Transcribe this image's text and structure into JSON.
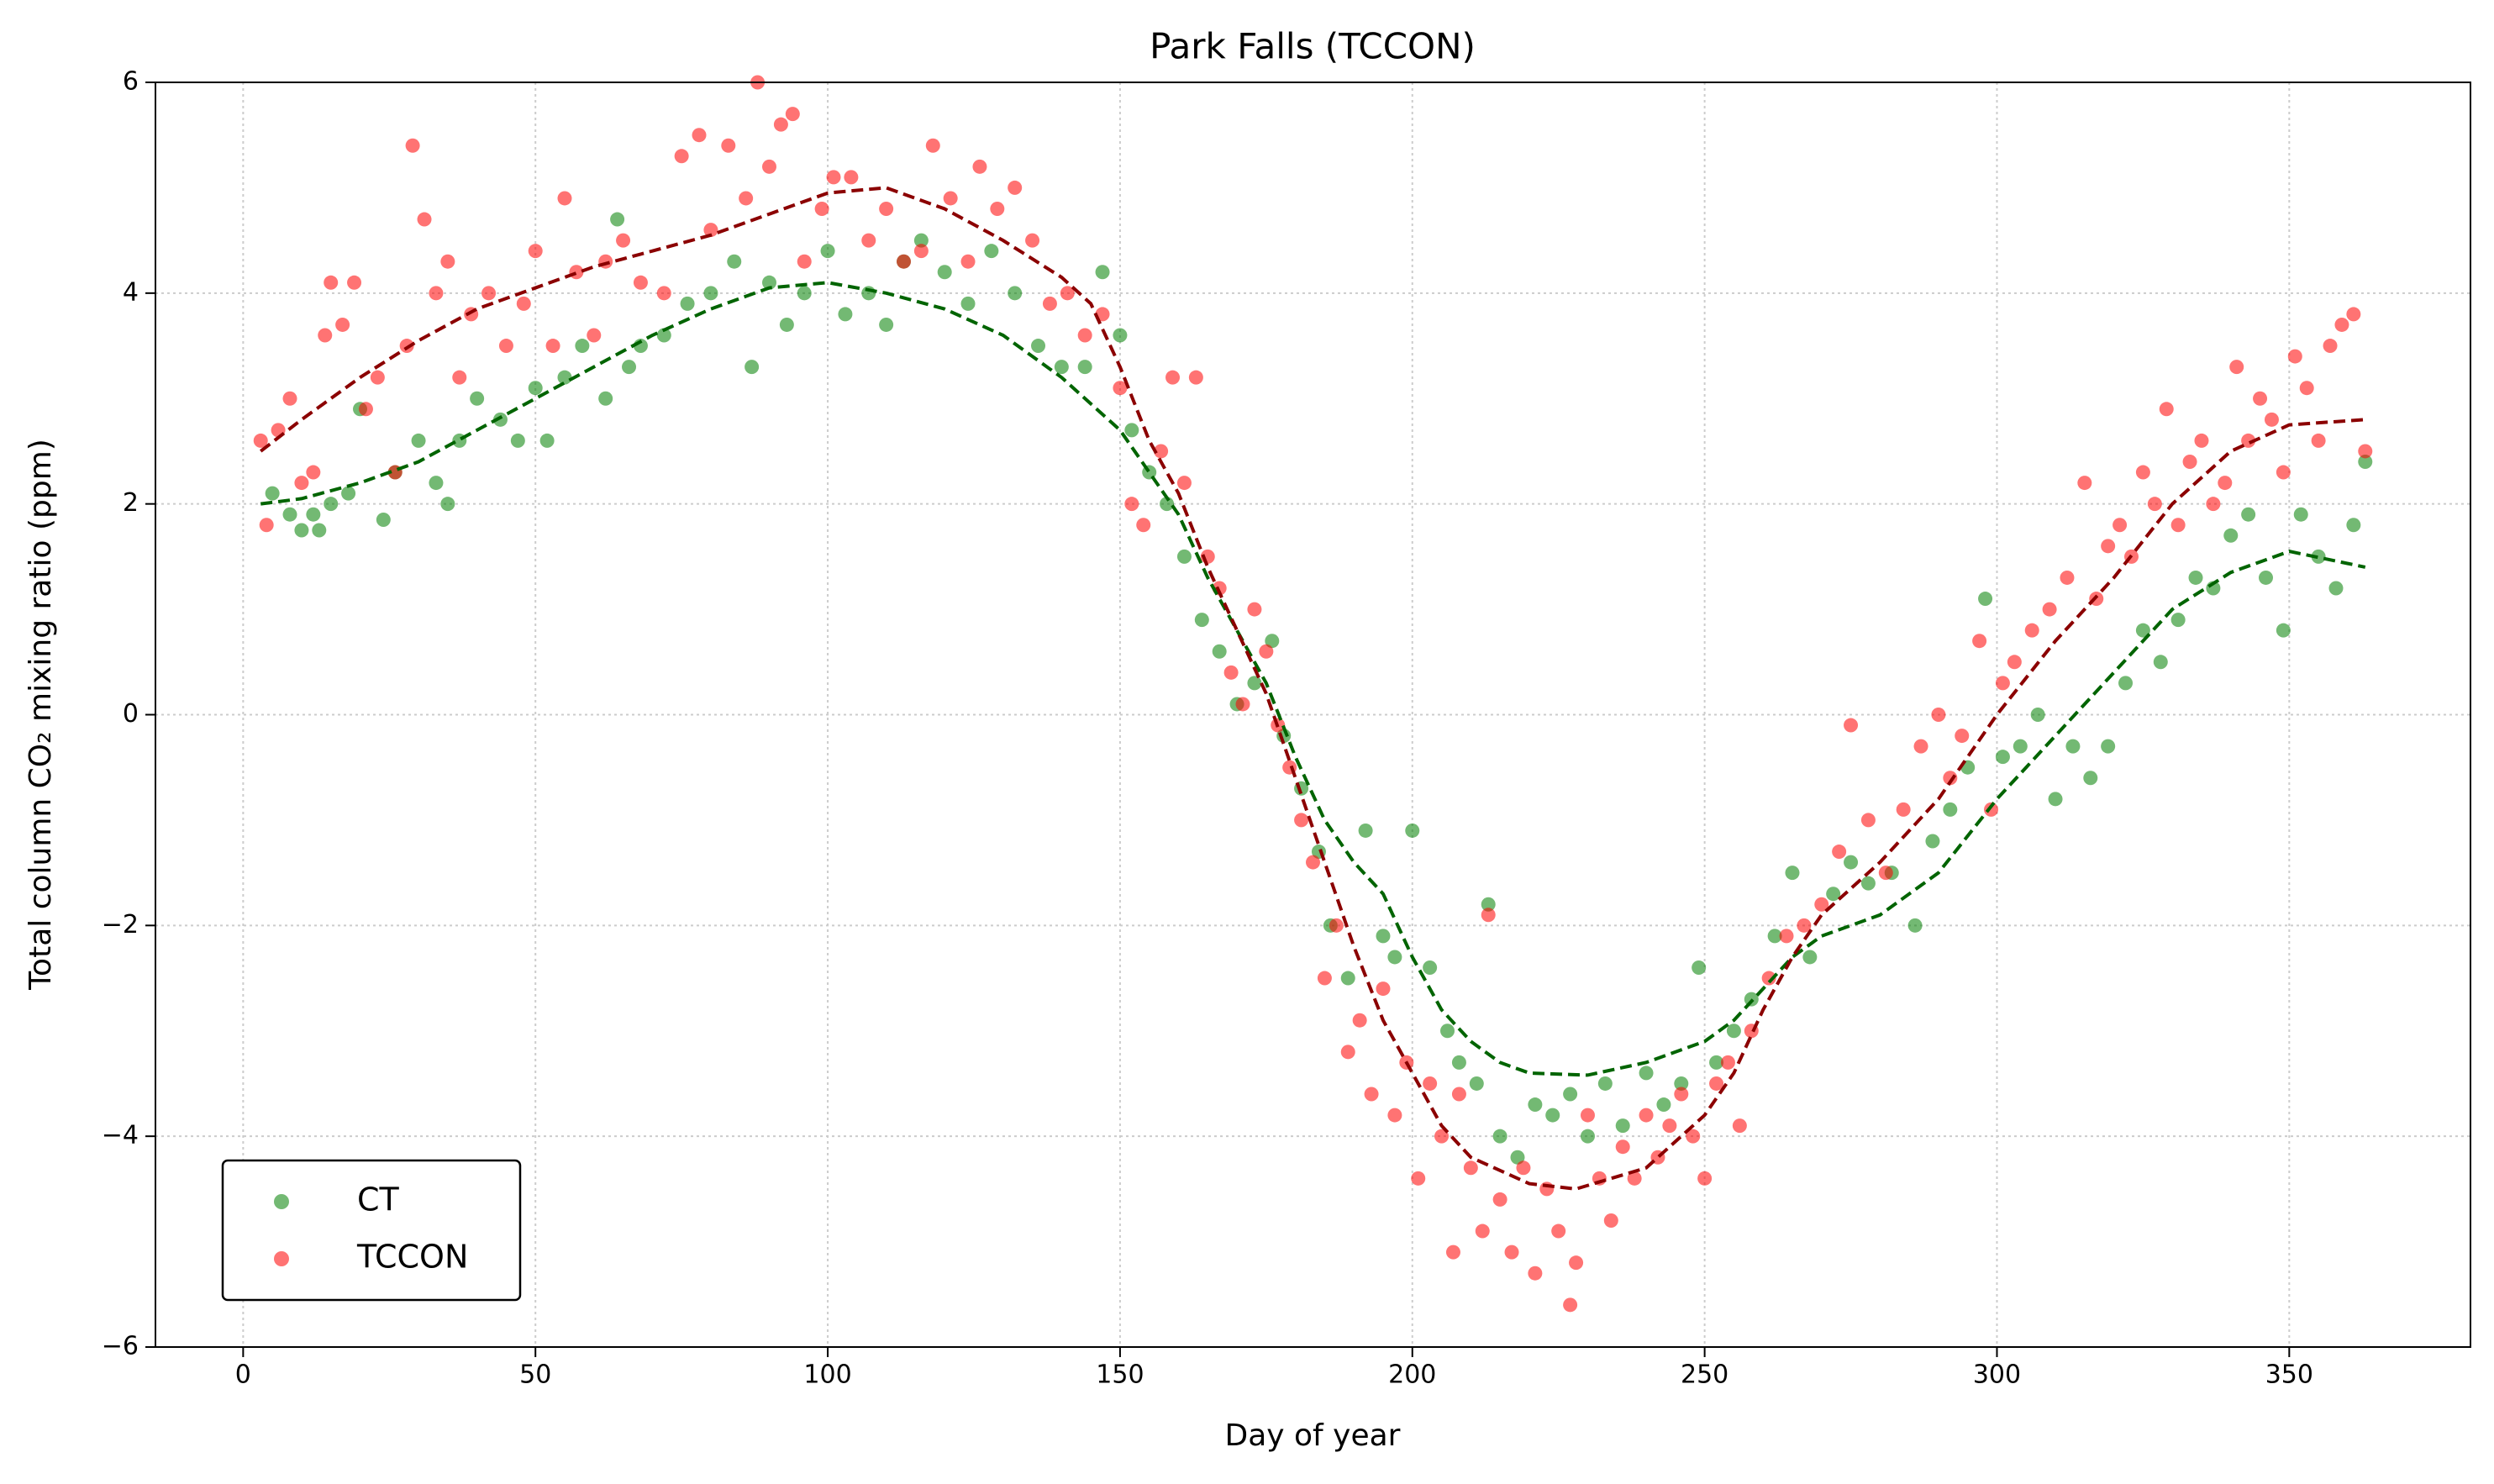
{
  "chart_data": {
    "type": "scatter",
    "title": "Park Falls (TCCON)",
    "x_label": "Day of year",
    "y_label": "Total column CO₂ mixing ratio (ppm)",
    "xlim": [
      -15,
      381
    ],
    "ylim": [
      -6,
      6
    ],
    "xticks": [
      0,
      50,
      100,
      150,
      200,
      250,
      300,
      350
    ],
    "yticks": [
      {
        "value": -6,
        "label": "−6"
      },
      {
        "value": -4,
        "label": "−4"
      },
      {
        "value": -2,
        "label": "−2"
      },
      0,
      2,
      4,
      6
    ],
    "grid": true,
    "legend": "lower left",
    "series": [
      {
        "name": "CT",
        "color": "#008000",
        "x": [
          5,
          8,
          10,
          12,
          13,
          15,
          18,
          20,
          24,
          26,
          30,
          33,
          35,
          37,
          40,
          44,
          47,
          50,
          52,
          55,
          58,
          62,
          64,
          66,
          68,
          72,
          76,
          80,
          84,
          87,
          90,
          93,
          96,
          100,
          103,
          107,
          110,
          113,
          116,
          120,
          124,
          128,
          132,
          136,
          140,
          144,
          147,
          150,
          152,
          155,
          158,
          161,
          164,
          167,
          170,
          173,
          176,
          178,
          181,
          184,
          186,
          189,
          192,
          195,
          197,
          200,
          203,
          206,
          208,
          211,
          213,
          215,
          218,
          221,
          224,
          227,
          230,
          233,
          236,
          240,
          243,
          246,
          249,
          252,
          255,
          258,
          262,
          265,
          268,
          272,
          275,
          278,
          282,
          286,
          289,
          292,
          295,
          298,
          301,
          304,
          307,
          310,
          313,
          316,
          319,
          322,
          325,
          328,
          331,
          334,
          337,
          340,
          343,
          346,
          349,
          352,
          355,
          358,
          361,
          363
        ],
        "values": [
          2.1,
          1.9,
          1.75,
          1.9,
          1.75,
          2.0,
          2.1,
          2.9,
          1.85,
          2.3,
          2.6,
          2.2,
          2.0,
          2.6,
          3.0,
          2.8,
          2.6,
          3.1,
          2.6,
          3.2,
          3.5,
          3.0,
          4.7,
          3.3,
          3.5,
          3.6,
          3.9,
          4.0,
          4.3,
          3.3,
          4.1,
          3.7,
          4.0,
          4.4,
          3.8,
          4.0,
          3.7,
          4.3,
          4.5,
          4.2,
          3.9,
          4.4,
          4.0,
          3.5,
          3.3,
          3.3,
          4.2,
          3.6,
          2.7,
          2.3,
          2.0,
          1.5,
          0.9,
          0.6,
          0.1,
          0.3,
          0.7,
          -0.2,
          -0.7,
          -1.3,
          -2.0,
          -2.5,
          -1.1,
          -2.1,
          -2.3,
          -1.1,
          -2.4,
          -3.0,
          -3.3,
          -3.5,
          -1.8,
          -4.0,
          -4.2,
          -3.7,
          -3.8,
          -3.6,
          -4.0,
          -3.5,
          -3.9,
          -3.4,
          -3.7,
          -3.5,
          -2.4,
          -3.3,
          -3.0,
          -2.7,
          -2.1,
          -1.5,
          -2.3,
          -1.7,
          -1.4,
          -1.6,
          -1.5,
          -2.0,
          -1.2,
          -0.9,
          -0.5,
          1.1,
          -0.4,
          -0.3,
          0.0,
          -0.8,
          -0.3,
          -0.6,
          -0.3,
          0.3,
          0.8,
          0.5,
          0.9,
          1.3,
          1.2,
          1.7,
          1.9,
          1.3,
          0.8,
          1.9,
          1.5,
          1.2,
          1.8,
          2.4
        ]
      },
      {
        "name": "TCCON",
        "color": "#ff0000",
        "x": [
          3,
          4,
          6,
          8,
          10,
          12,
          14,
          15,
          17,
          19,
          21,
          23,
          26,
          28,
          29,
          31,
          33,
          35,
          37,
          39,
          42,
          45,
          48,
          50,
          53,
          55,
          57,
          60,
          62,
          65,
          68,
          72,
          75,
          78,
          80,
          83,
          86,
          88,
          90,
          92,
          94,
          96,
          99,
          101,
          104,
          107,
          110,
          113,
          116,
          118,
          121,
          124,
          126,
          129,
          132,
          135,
          138,
          141,
          144,
          147,
          150,
          152,
          154,
          157,
          159,
          161,
          163,
          165,
          167,
          169,
          171,
          173,
          175,
          177,
          179,
          181,
          183,
          185,
          187,
          189,
          191,
          193,
          195,
          197,
          199,
          201,
          203,
          205,
          207,
          208,
          210,
          212,
          213,
          215,
          217,
          219,
          221,
          223,
          225,
          227,
          228,
          230,
          232,
          234,
          236,
          238,
          240,
          242,
          244,
          246,
          248,
          250,
          252,
          254,
          256,
          258,
          261,
          264,
          267,
          270,
          273,
          275,
          278,
          281,
          284,
          287,
          290,
          292,
          294,
          297,
          299,
          301,
          303,
          306,
          309,
          312,
          315,
          317,
          319,
          321,
          323,
          325,
          327,
          329,
          331,
          333,
          335,
          337,
          339,
          341,
          343,
          345,
          347,
          349,
          351,
          353,
          355,
          357,
          359,
          361,
          363
        ],
        "values": [
          2.6,
          1.8,
          2.7,
          3.0,
          2.2,
          2.3,
          3.6,
          4.1,
          3.7,
          4.1,
          2.9,
          3.2,
          2.3,
          3.5,
          5.4,
          4.7,
          4.0,
          4.3,
          3.2,
          3.8,
          4.0,
          3.5,
          3.9,
          4.4,
          3.5,
          4.9,
          4.2,
          3.6,
          4.3,
          4.5,
          4.1,
          4.0,
          5.3,
          5.5,
          4.6,
          5.4,
          4.9,
          6.0,
          5.2,
          5.6,
          5.7,
          4.3,
          4.8,
          5.1,
          5.1,
          4.5,
          4.8,
          4.3,
          4.4,
          5.4,
          4.9,
          4.3,
          5.2,
          4.8,
          5.0,
          4.5,
          3.9,
          4.0,
          3.6,
          3.8,
          3.1,
          2.0,
          1.8,
          2.5,
          3.2,
          2.2,
          3.2,
          1.5,
          1.2,
          0.4,
          0.1,
          1.0,
          0.6,
          -0.1,
          -0.5,
          -1.0,
          -1.4,
          -2.5,
          -2.0,
          -3.2,
          -2.9,
          -3.6,
          -2.6,
          -3.8,
          -3.3,
          -4.4,
          -3.5,
          -4.0,
          -5.1,
          -3.6,
          -4.3,
          -4.9,
          -1.9,
          -4.6,
          -5.1,
          -4.3,
          -5.3,
          -4.5,
          -4.9,
          -5.6,
          -5.2,
          -3.8,
          -4.4,
          -4.8,
          -4.1,
          -4.4,
          -3.8,
          -4.2,
          -3.9,
          -3.6,
          -4.0,
          -4.4,
          -3.5,
          -3.3,
          -3.9,
          -3.0,
          -2.5,
          -2.1,
          -2.0,
          -1.8,
          -1.3,
          -0.1,
          -1.0,
          -1.5,
          -0.9,
          -0.3,
          0.0,
          -0.6,
          -0.2,
          0.7,
          -0.9,
          0.3,
          0.5,
          0.8,
          1.0,
          1.3,
          2.2,
          1.1,
          1.6,
          1.8,
          1.5,
          2.3,
          2.0,
          2.9,
          1.8,
          2.4,
          2.6,
          2.0,
          2.2,
          3.3,
          2.6,
          3.0,
          2.8,
          2.3,
          3.4,
          3.1,
          2.6,
          3.5,
          3.7,
          3.8,
          2.5
        ]
      }
    ],
    "lines": [
      {
        "color": "#006400",
        "style": "dashed",
        "x": [
          3,
          10,
          20,
          30,
          40,
          50,
          60,
          70,
          80,
          90,
          100,
          110,
          120,
          130,
          140,
          145,
          150,
          155,
          160,
          165,
          170,
          175,
          180,
          185,
          190,
          195,
          200,
          205,
          210,
          215,
          220,
          230,
          240,
          250,
          255,
          260,
          265,
          270,
          280,
          290,
          300,
          305,
          310,
          320,
          330,
          340,
          350,
          363
        ],
        "values": [
          2.0,
          2.05,
          2.2,
          2.4,
          2.7,
          3.0,
          3.3,
          3.6,
          3.85,
          4.05,
          4.1,
          4.0,
          3.85,
          3.6,
          3.2,
          2.95,
          2.7,
          2.3,
          1.9,
          1.3,
          0.8,
          0.3,
          -0.4,
          -1.0,
          -1.4,
          -1.7,
          -2.3,
          -2.8,
          -3.1,
          -3.3,
          -3.4,
          -3.42,
          -3.3,
          -3.1,
          -2.9,
          -2.6,
          -2.3,
          -2.1,
          -1.9,
          -1.5,
          -0.8,
          -0.5,
          -0.2,
          0.4,
          1.0,
          1.35,
          1.55,
          1.4
        ]
      },
      {
        "color": "#8b0000",
        "style": "dashed",
        "x": [
          3,
          10,
          20,
          30,
          40,
          50,
          60,
          70,
          80,
          90,
          100,
          110,
          120,
          130,
          140,
          145,
          150,
          155,
          160,
          165,
          170,
          175,
          180,
          185,
          190,
          195,
          200,
          205,
          210,
          220,
          228,
          240,
          250,
          255,
          260,
          265,
          270,
          280,
          290,
          300,
          310,
          320,
          330,
          340,
          350,
          363
        ],
        "values": [
          2.5,
          2.8,
          3.2,
          3.55,
          3.85,
          4.05,
          4.25,
          4.4,
          4.55,
          4.75,
          4.95,
          5.0,
          4.8,
          4.5,
          4.15,
          3.9,
          3.3,
          2.6,
          2.1,
          1.4,
          0.8,
          0.2,
          -0.6,
          -1.4,
          -2.2,
          -2.9,
          -3.4,
          -3.9,
          -4.2,
          -4.45,
          -4.5,
          -4.3,
          -3.8,
          -3.4,
          -2.8,
          -2.3,
          -1.9,
          -1.4,
          -0.8,
          0.0,
          0.7,
          1.3,
          2.0,
          2.5,
          2.75,
          2.8
        ]
      }
    ]
  }
}
